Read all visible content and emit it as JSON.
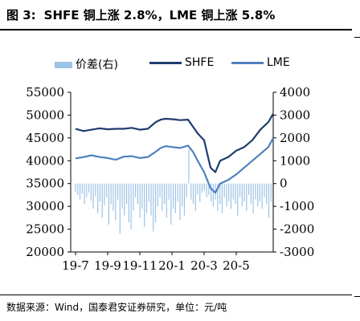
{
  "title": {
    "figure_no": "图 3:",
    "text": "SHFE 铜上涨 2.8%，LME 铜上涨 5.8%"
  },
  "source": "数据来源：Wind，国泰君安证券研究，单位：元/吨",
  "colors": {
    "shfe": "#1f3c6e",
    "lme": "#4f81bd",
    "spread": "#9dc3e6"
  },
  "chart_data": {
    "type": "line",
    "legend": [
      {
        "name": "价差(右)",
        "kind": "bar"
      },
      {
        "name": "SHFE",
        "kind": "line"
      },
      {
        "name": "LME",
        "kind": "line"
      }
    ],
    "legend_position": "top",
    "x_ticks": [
      "19-7",
      "19-9",
      "19-11",
      "20-1",
      "20-3",
      "20-5"
    ],
    "y_left": {
      "min": 20000,
      "max": 55000,
      "ticks": [
        20000,
        25000,
        30000,
        35000,
        40000,
        45000,
        50000,
        55000
      ]
    },
    "y_right": {
      "min": -3000,
      "max": 4000,
      "ticks": [
        -3000,
        -2000,
        -1000,
        0,
        1000,
        2000,
        3000,
        4000
      ]
    },
    "grid": false,
    "series": [
      {
        "name": "SHFE",
        "axis": "left",
        "x": [
          0,
          0.5,
          1,
          1.5,
          2,
          2.5,
          3,
          3.5,
          4,
          4.5,
          5,
          5.3,
          5.6,
          6,
          6.5,
          7,
          7.3,
          7.6,
          8,
          8.4,
          8.7,
          9,
          9.5,
          10,
          10.5,
          11,
          11.5,
          12,
          12.3
        ],
        "values": [
          47000,
          46500,
          46800,
          47100,
          46900,
          47000,
          47000,
          47200,
          46800,
          47000,
          48500,
          49000,
          49200,
          49100,
          48900,
          49000,
          47500,
          46000,
          44500,
          38500,
          37500,
          40000,
          40800,
          42200,
          43000,
          44500,
          46800,
          48500,
          50300
        ]
      },
      {
        "name": "LME",
        "axis": "left",
        "x": [
          0,
          0.5,
          1,
          1.5,
          2,
          2.5,
          3,
          3.5,
          4,
          4.5,
          5,
          5.3,
          5.6,
          6,
          6.5,
          7,
          7.3,
          7.6,
          8,
          8.4,
          8.7,
          9,
          9.5,
          10,
          10.5,
          11,
          11.5,
          12,
          12.3
        ],
        "values": [
          40500,
          40800,
          41200,
          40800,
          40600,
          40200,
          40900,
          41000,
          40600,
          40800,
          42000,
          42800,
          43200,
          43000,
          42800,
          43300,
          42000,
          40000,
          37500,
          34000,
          33000,
          35000,
          35800,
          37000,
          38500,
          40000,
          41500,
          43000,
          45000
        ]
      },
      {
        "name": "价差(右)",
        "axis": "right",
        "kind": "bar",
        "start_x": 0,
        "end_x": 12.3,
        "values": [
          -350,
          -500,
          -700,
          -450,
          -900,
          -600,
          -400,
          -750,
          -1100,
          -550,
          -1300,
          -800,
          -1500,
          -950,
          -600,
          -1800,
          -900,
          -1200,
          -1600,
          -700,
          -2200,
          -1100,
          -1400,
          -900,
          -1700,
          -2000,
          -1200,
          -600,
          -900,
          -1500,
          -1100,
          -1900,
          -1300,
          -800,
          -1400,
          -2100,
          -1700,
          -1000,
          -600,
          -1200,
          -900,
          -1500,
          -700,
          -1800,
          -1100,
          -1300,
          -800,
          -1600,
          -1000,
          -1400,
          -600,
          1500,
          -700,
          -900,
          -1200,
          -500,
          -800,
          -400,
          -300,
          -600,
          -500,
          -800,
          -1000,
          -700,
          -1200,
          -900,
          -1300,
          -600,
          -1000,
          -800,
          -1100,
          -700,
          -900,
          -1400,
          -600,
          -1000,
          -800,
          -1200,
          -500,
          -900,
          -1300,
          -700,
          -1000,
          -800,
          -1100,
          -600,
          -900,
          -1500,
          -800,
          -1000
        ]
      }
    ]
  }
}
